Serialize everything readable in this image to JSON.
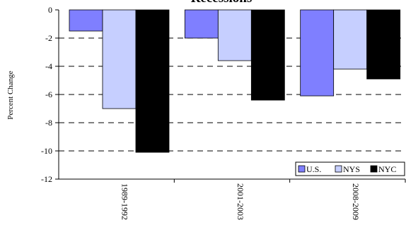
{
  "chart_data": {
    "type": "bar",
    "title": "Recessions",
    "ylabel": "Percent Change",
    "xlabel": "",
    "ylim": [
      -12,
      0
    ],
    "yticks": [
      0,
      -2,
      -4,
      -6,
      -8,
      -10,
      -12
    ],
    "grid": "dashed horizontal",
    "legend_position": "bottom-right",
    "categories": [
      "1989-1992",
      "2001-2003",
      "2008-2009"
    ],
    "series": [
      {
        "name": "U.S.",
        "color": "#7f7fff",
        "values": [
          -1.5,
          -2.0,
          -6.1
        ]
      },
      {
        "name": "NYS",
        "color": "#c6cfff",
        "values": [
          -7.0,
          -3.6,
          -4.2
        ]
      },
      {
        "name": "NYC",
        "color": "#000000",
        "values": [
          -10.1,
          -6.4,
          -4.9
        ]
      }
    ]
  }
}
